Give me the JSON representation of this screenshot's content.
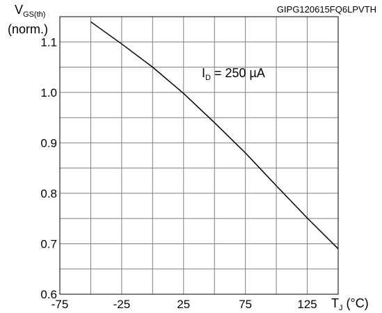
{
  "chart_data": {
    "type": "line",
    "code_label": "GIPG120615FQ6LPVTH",
    "ylabel_main": "V",
    "ylabel_sub": "GS(th)",
    "ylabel_unit": "(norm.)",
    "xlabel_main": "T",
    "xlabel_sub": "J",
    "xlabel_unit": " (°C)",
    "annotation_main": "I",
    "annotation_sub": "D",
    "annotation_value": " = 250 µA",
    "xlim": [
      -75,
      150
    ],
    "ylim": [
      0.6,
      1.15
    ],
    "x_ticks": [
      -75,
      -25,
      25,
      75,
      125
    ],
    "y_ticks": [
      0.6,
      0.7,
      0.8,
      0.9,
      1.0,
      1.1
    ],
    "x_tick_labels": [
      "-75",
      "-25",
      "25",
      "75",
      "125"
    ],
    "y_tick_labels": [
      "0.6",
      "0.7",
      "0.8",
      "0.9",
      "1.0",
      "1.1"
    ],
    "grid": true,
    "series": [
      {
        "x": [
          -50,
          -25,
          0,
          25,
          50,
          75,
          100,
          125,
          150
        ],
        "y": [
          1.14,
          1.096,
          1.05,
          0.998,
          0.94,
          0.88,
          0.815,
          0.751,
          0.69
        ]
      }
    ]
  }
}
